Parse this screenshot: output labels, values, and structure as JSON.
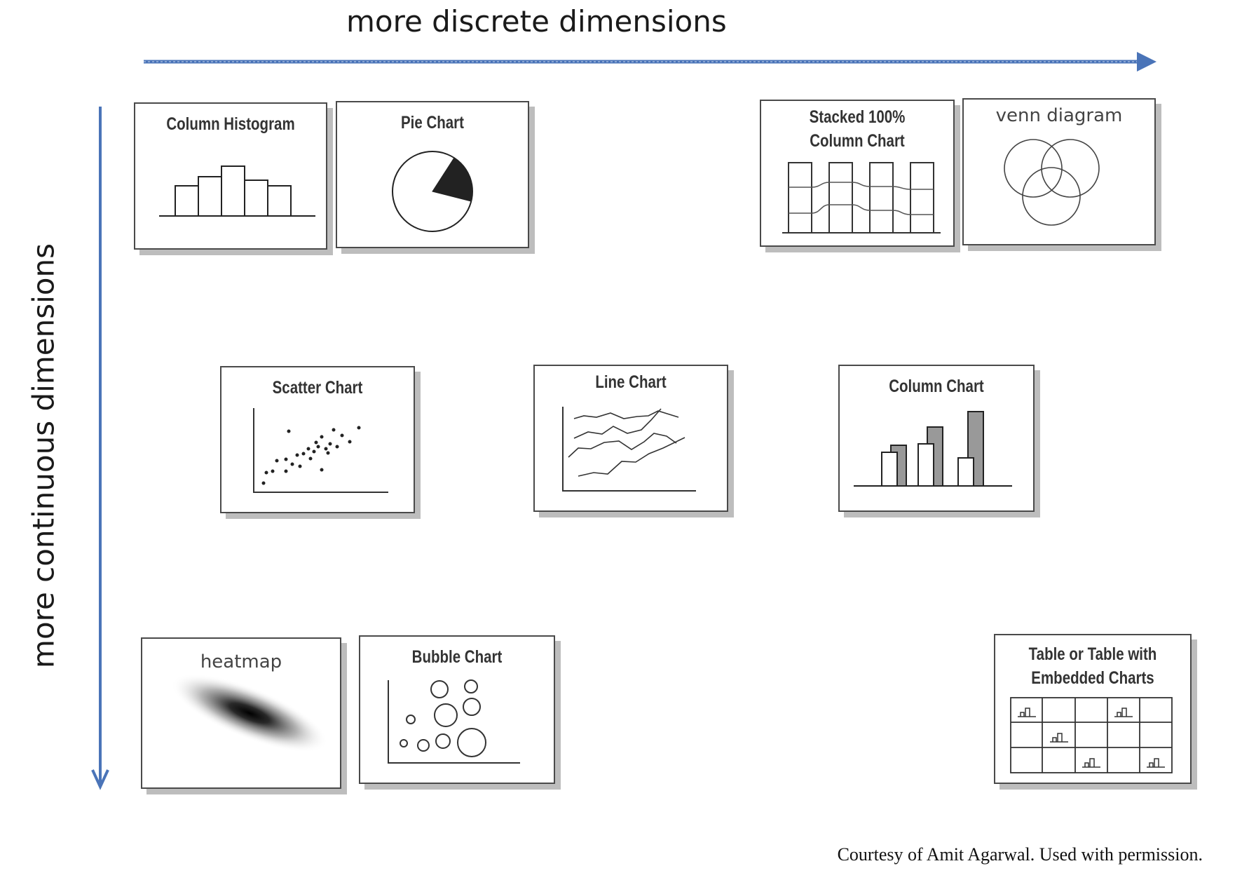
{
  "axes": {
    "x_title": "more discrete dimensions",
    "y_title": "more continuous dimensions",
    "arrow_color": "#4a74b8"
  },
  "cards": {
    "column_histogram": {
      "title": "Column Histogram"
    },
    "pie_chart": {
      "title": "Pie Chart"
    },
    "stacked_column": {
      "title_line1": "Stacked 100%",
      "title_line2": "Column Chart"
    },
    "venn": {
      "title": "venn diagram"
    },
    "scatter": {
      "title": "Scatter Chart"
    },
    "line": {
      "title": "Line Chart"
    },
    "column": {
      "title": "Column Chart"
    },
    "heatmap": {
      "title": "heatmap"
    },
    "bubble": {
      "title": "Bubble Chart"
    },
    "table": {
      "title_line1": "Table or Table with",
      "title_line2": "Embedded Charts"
    }
  },
  "credit": "Courtesy of  Amit Agarwal. Used with permission."
}
